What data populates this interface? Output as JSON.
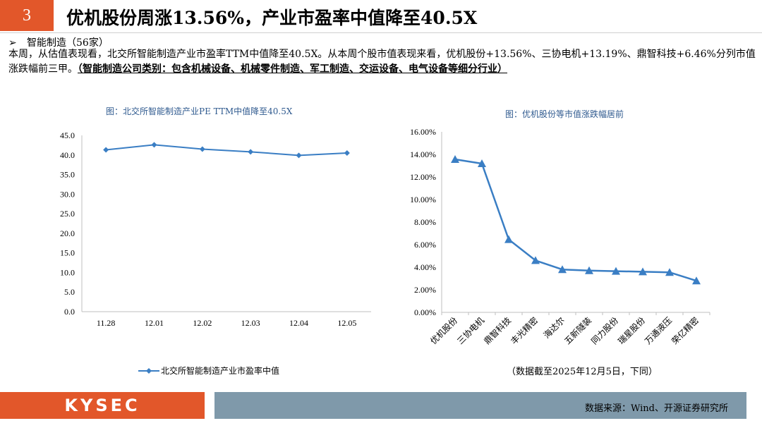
{
  "header": {
    "number": "3",
    "title": "优机股份周涨13.56%，产业市盈率中值降至40.5X"
  },
  "section": {
    "arrow": "➢",
    "title": "智能制造（56家）"
  },
  "description": {
    "text": "本周，从估值表现看，北交所智能制造产业市盈率TTM中值降至40.5X。从本周个股市值表现来看，优机股份+13.56%、三协电机+13.19%、鼎智科技+6.46%分列市值涨跌幅前三甲。",
    "note": "（智能制造公司类别：包含机械设备、机械零件制造、军工制造、交运设备、电气设备等细分行业）"
  },
  "left_chart": {
    "caption": "图：北交所智能制造产业PE TTM中值降至40.5X",
    "legend": "北交所智能制造产业市盈率中值"
  },
  "right_chart": {
    "caption": "图：优机股份等市值涨跌幅居前",
    "note": "（数据截至2025年12月5日，下同）"
  },
  "footer": {
    "logo": "KYSEC",
    "source": "数据来源：Wind、开源证券研究所"
  },
  "colors": {
    "accent": "#e2572a",
    "series": "#3a7ec4",
    "footer_bar": "#7f99aa"
  },
  "chart_data": [
    {
      "type": "line",
      "categories": [
        "11.28",
        "12.01",
        "12.02",
        "12.03",
        "12.04",
        "12.05"
      ],
      "series": [
        {
          "name": "北交所智能制造产业市盈率中值",
          "values": [
            41.3,
            42.6,
            41.5,
            40.8,
            39.9,
            40.5
          ]
        }
      ],
      "ylim": [
        0,
        45
      ],
      "yticks": [
        "0.0",
        "5.0",
        "10.0",
        "15.0",
        "20.0",
        "25.0",
        "30.0",
        "35.0",
        "40.0",
        "45.0"
      ],
      "grid": false,
      "legend": "bottom"
    },
    {
      "type": "line",
      "categories": [
        "优机股份",
        "三协电机",
        "鼎智科技",
        "丰光精密",
        "海达尔",
        "五新隧装",
        "同力股份",
        "瑞星股份",
        "万通液压",
        "荣亿精密"
      ],
      "series": [
        {
          "values": [
            13.56,
            13.19,
            6.46,
            4.6,
            3.8,
            3.7,
            3.65,
            3.6,
            3.55,
            2.8
          ]
        }
      ],
      "ylim": [
        0,
        16
      ],
      "yticks": [
        "0.00%",
        "2.00%",
        "4.00%",
        "6.00%",
        "8.00%",
        "10.00%",
        "12.00%",
        "14.00%",
        "16.00%"
      ],
      "grid": false
    }
  ]
}
